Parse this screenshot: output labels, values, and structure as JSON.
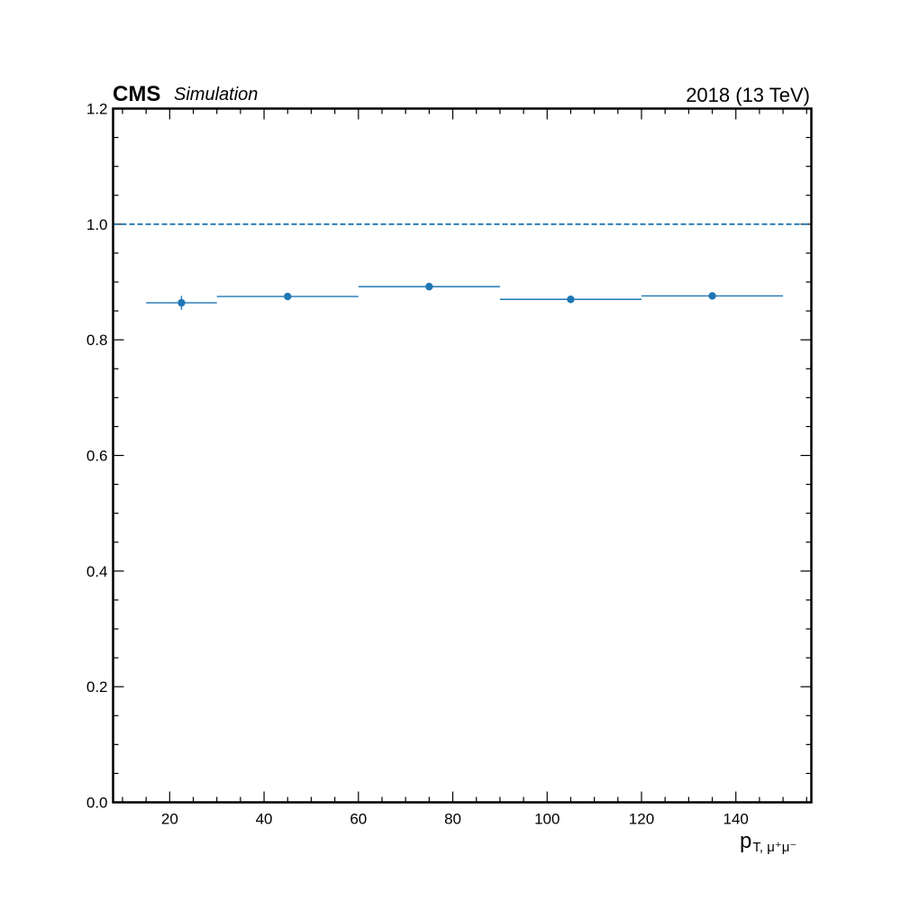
{
  "header": {
    "experiment": "CMS",
    "status": "Simulation",
    "lumi": "2018 (13 TeV)"
  },
  "axes": {
    "xlabel_main": "p",
    "xlabel_sub": "T, μ⁺μ⁻"
  },
  "chart_data": {
    "type": "scatter",
    "xlim": [
      8,
      156
    ],
    "ylim": [
      0.0,
      1.2
    ],
    "x_major_ticks": [
      20,
      40,
      60,
      80,
      100,
      120,
      140
    ],
    "y_major_ticks": [
      0.0,
      0.2,
      0.4,
      0.6,
      0.8,
      1.0,
      1.2
    ],
    "grid": false,
    "reference_line": {
      "y": 1.0,
      "style": "dashed"
    },
    "series": [
      {
        "color": "#1f77b4",
        "points": [
          {
            "x": 22.5,
            "xlow": 15,
            "xhigh": 30,
            "y": 0.864,
            "yerr": 0.012
          },
          {
            "x": 45,
            "xlow": 30,
            "xhigh": 60,
            "y": 0.875,
            "yerr": 0.003
          },
          {
            "x": 75,
            "xlow": 60,
            "xhigh": 90,
            "y": 0.892,
            "yerr": 0.003
          },
          {
            "x": 105,
            "xlow": 90,
            "xhigh": 120,
            "y": 0.87,
            "yerr": 0.003
          },
          {
            "x": 135,
            "xlow": 120,
            "xhigh": 150,
            "y": 0.876,
            "yerr": 0.003
          }
        ]
      }
    ]
  }
}
